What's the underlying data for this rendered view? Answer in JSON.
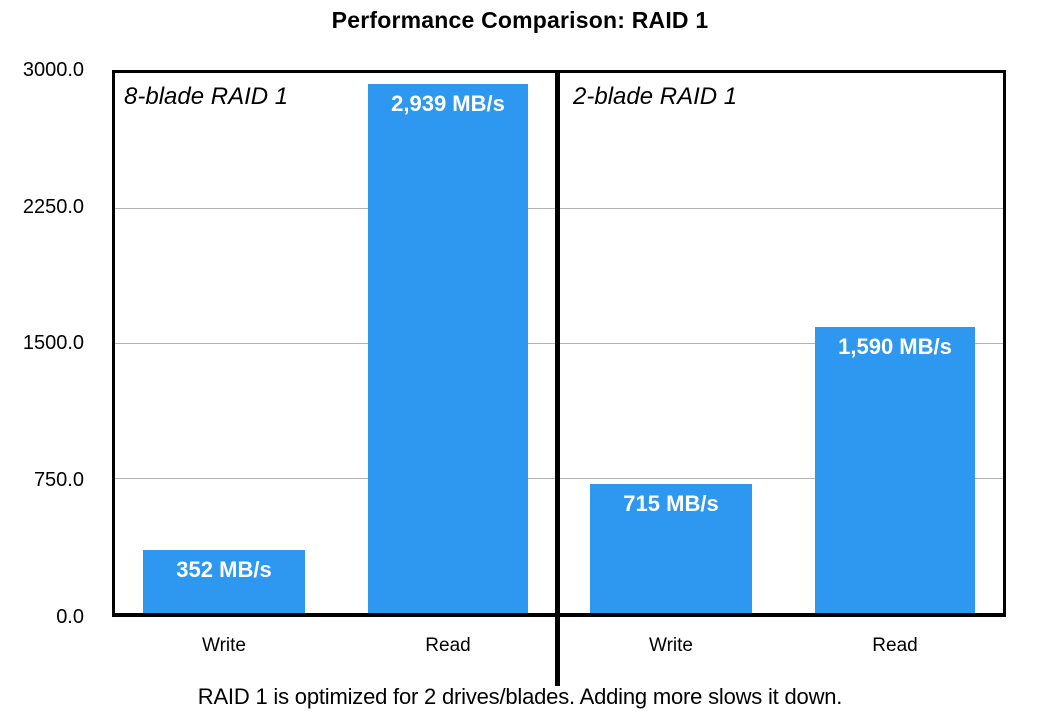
{
  "title": "Performance Comparison: RAID 1",
  "caption": "RAID 1 is optimized for 2 drives/blades. Adding more slows it down.",
  "y_axis": {
    "ticks": [
      "3000.0",
      "2250.0",
      "1500.0",
      "750.0",
      "0.0"
    ]
  },
  "panels": [
    {
      "label": "8-blade RAID 1",
      "bars": [
        {
          "category": "Write",
          "value_label": "352 MB/s"
        },
        {
          "category": "Read",
          "value_label": "2,939 MB/s"
        }
      ]
    },
    {
      "label": "2-blade RAID 1",
      "bars": [
        {
          "category": "Write",
          "value_label": "715 MB/s"
        },
        {
          "category": "Read",
          "value_label": "1,590 MB/s"
        }
      ]
    }
  ],
  "colors": {
    "bar": "#2E97F0",
    "gridline": "#B3B3B3",
    "border": "#000000",
    "value_text": "#FFFFFF"
  },
  "chart_data": {
    "type": "bar",
    "title": "Performance Comparison: RAID 1",
    "xlabel": "",
    "ylabel": "",
    "ylim": [
      0,
      3000
    ],
    "yticks": [
      0.0,
      750.0,
      1500.0,
      2250.0,
      3000.0
    ],
    "grid": true,
    "legend_position": "none",
    "categories": [
      "Write",
      "Read"
    ],
    "series": [
      {
        "name": "8-blade RAID 1",
        "values": [
          352,
          2939
        ]
      },
      {
        "name": "2-blade RAID 1",
        "values": [
          715,
          1590
        ]
      }
    ],
    "data_labels": [
      "352 MB/s",
      "2,939 MB/s",
      "715 MB/s",
      "1,590 MB/s"
    ],
    "panel_annotations": [
      "8-blade RAID 1",
      "2-blade RAID 1"
    ],
    "caption": "RAID 1 is optimized for 2 drives/blades. Adding more slows it down."
  }
}
